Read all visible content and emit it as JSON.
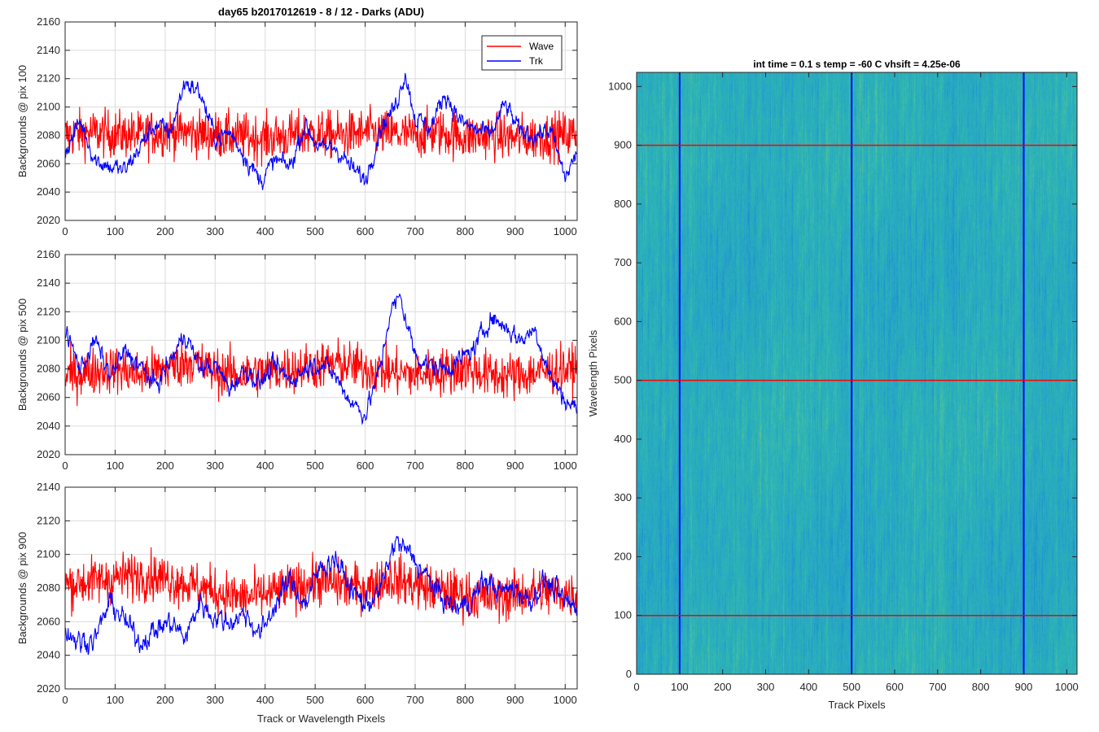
{
  "chart_data": [
    {
      "type": "line",
      "title": "day65 b2017012619 - 8 / 12 - Darks (ADU)",
      "xlabel": "",
      "ylabel": "Backgrounds @ pix 100",
      "xlim": [
        0,
        1024
      ],
      "ylim": [
        2020,
        2160
      ],
      "xticks": [
        0,
        100,
        200,
        300,
        400,
        500,
        600,
        700,
        800,
        900,
        1000
      ],
      "yticks": [
        2020,
        2040,
        2060,
        2080,
        2100,
        2120,
        2140,
        2160
      ],
      "grid": true,
      "legend": "top-right",
      "series": [
        {
          "name": "Wave",
          "color": "#ff0000",
          "style": "noisy",
          "x": [
            0,
            50,
            100,
            150,
            200,
            250,
            300,
            350,
            400,
            450,
            500,
            550,
            600,
            650,
            700,
            750,
            800,
            850,
            900,
            950,
            1024
          ],
          "values": [
            2080,
            2082,
            2081,
            2080,
            2083,
            2082,
            2080,
            2079,
            2078,
            2080,
            2081,
            2080,
            2082,
            2081,
            2080,
            2082,
            2079,
            2080,
            2078,
            2079,
            2081
          ],
          "spread": 14
        },
        {
          "name": "Trk",
          "color": "#0000ff",
          "style": "smooth",
          "x": [
            0,
            30,
            60,
            90,
            120,
            150,
            180,
            210,
            240,
            270,
            300,
            330,
            360,
            390,
            420,
            450,
            480,
            510,
            540,
            570,
            600,
            630,
            660,
            680,
            700,
            730,
            760,
            790,
            820,
            850,
            880,
            910,
            940,
            970,
            1000,
            1024
          ],
          "values": [
            2068,
            2090,
            2063,
            2058,
            2055,
            2072,
            2088,
            2082,
            2118,
            2110,
            2078,
            2082,
            2065,
            2048,
            2062,
            2058,
            2088,
            2070,
            2072,
            2058,
            2048,
            2085,
            2100,
            2125,
            2092,
            2085,
            2110,
            2090,
            2084,
            2080,
            2102,
            2082,
            2080,
            2084,
            2050,
            2068
          ],
          "spread": 5
        }
      ]
    },
    {
      "type": "line",
      "title": "",
      "xlabel": "",
      "ylabel": "Backgrounds @ pix 500",
      "xlim": [
        0,
        1024
      ],
      "ylim": [
        2020,
        2160
      ],
      "xticks": [
        0,
        100,
        200,
        300,
        400,
        500,
        600,
        700,
        800,
        900,
        1000
      ],
      "yticks": [
        2020,
        2040,
        2060,
        2080,
        2100,
        2120,
        2140,
        2160
      ],
      "grid": true,
      "series": [
        {
          "name": "Wave",
          "color": "#ff0000",
          "style": "noisy",
          "x": [
            0,
            50,
            100,
            150,
            200,
            250,
            300,
            350,
            400,
            450,
            500,
            550,
            600,
            650,
            700,
            750,
            800,
            850,
            900,
            950,
            1024
          ],
          "values": [
            2075,
            2078,
            2080,
            2076,
            2080,
            2086,
            2078,
            2076,
            2078,
            2080,
            2082,
            2084,
            2080,
            2078,
            2076,
            2078,
            2080,
            2076,
            2075,
            2078,
            2080
          ],
          "spread": 14
        },
        {
          "name": "Trk",
          "color": "#0000ff",
          "style": "smooth",
          "x": [
            0,
            30,
            60,
            90,
            120,
            150,
            180,
            210,
            240,
            270,
            300,
            330,
            360,
            390,
            420,
            450,
            480,
            510,
            540,
            570,
            600,
            630,
            650,
            670,
            700,
            730,
            760,
            790,
            820,
            850,
            880,
            910,
            940,
            970,
            1000,
            1024
          ],
          "values": [
            2108,
            2080,
            2100,
            2075,
            2092,
            2082,
            2068,
            2085,
            2105,
            2080,
            2082,
            2066,
            2080,
            2070,
            2082,
            2072,
            2080,
            2085,
            2075,
            2058,
            2048,
            2080,
            2120,
            2130,
            2090,
            2082,
            2080,
            2086,
            2095,
            2116,
            2110,
            2100,
            2108,
            2075,
            2058,
            2052
          ],
          "spread": 5
        }
      ]
    },
    {
      "type": "line",
      "title": "",
      "xlabel": "Track or Wavelength Pixels",
      "ylabel": "Backgrounds @ pix 900",
      "xlim": [
        0,
        1024
      ],
      "ylim": [
        2020,
        2140
      ],
      "xticks": [
        0,
        100,
        200,
        300,
        400,
        500,
        600,
        700,
        800,
        900,
        1000
      ],
      "yticks": [
        2020,
        2040,
        2060,
        2080,
        2100,
        2120,
        2140
      ],
      "grid": true,
      "series": [
        {
          "name": "Wave",
          "color": "#ff0000",
          "style": "noisy",
          "x": [
            0,
            50,
            100,
            150,
            200,
            250,
            300,
            350,
            400,
            450,
            500,
            550,
            600,
            650,
            700,
            750,
            800,
            850,
            900,
            950,
            1024
          ],
          "values": [
            2082,
            2084,
            2086,
            2088,
            2086,
            2082,
            2078,
            2074,
            2076,
            2080,
            2084,
            2082,
            2080,
            2086,
            2082,
            2078,
            2076,
            2074,
            2076,
            2078,
            2076
          ],
          "spread": 12
        },
        {
          "name": "Trk",
          "color": "#0000ff",
          "style": "smooth",
          "x": [
            0,
            30,
            60,
            90,
            120,
            150,
            180,
            210,
            240,
            270,
            300,
            330,
            360,
            390,
            420,
            450,
            480,
            510,
            540,
            570,
            600,
            630,
            660,
            690,
            720,
            750,
            780,
            810,
            840,
            870,
            900,
            930,
            960,
            990,
            1024
          ],
          "values": [
            2055,
            2048,
            2050,
            2072,
            2060,
            2048,
            2055,
            2060,
            2050,
            2072,
            2062,
            2060,
            2065,
            2052,
            2070,
            2085,
            2070,
            2092,
            2098,
            2080,
            2070,
            2078,
            2108,
            2100,
            2088,
            2075,
            2068,
            2072,
            2085,
            2078,
            2080,
            2072,
            2085,
            2074,
            2068
          ],
          "spread": 5
        }
      ]
    },
    {
      "type": "heatmap",
      "title": "int time = 0.1 s   temp = -60 C   vhsift = 4.25e-06",
      "xlabel": "Track Pixels",
      "ylabel": "Wavelength Pixels",
      "xlim": [
        0,
        1024
      ],
      "ylim": [
        0,
        1024
      ],
      "xticks": [
        0,
        100,
        200,
        300,
        400,
        500,
        600,
        700,
        800,
        900,
        1000
      ],
      "yticks": [
        0,
        100,
        200,
        300,
        400,
        500,
        600,
        700,
        800,
        900,
        1000
      ],
      "colormap": [
        "#1e8ed2",
        "#27a5c6",
        "#2bb3b6",
        "#48bfa3",
        "#9cc868"
      ],
      "horizontal_lines": [
        100,
        500,
        900
      ],
      "horizontal_line_color": "#ff0000",
      "vertical_lines": [
        100,
        500,
        900
      ],
      "vertical_line_color": "#0000ff"
    }
  ]
}
